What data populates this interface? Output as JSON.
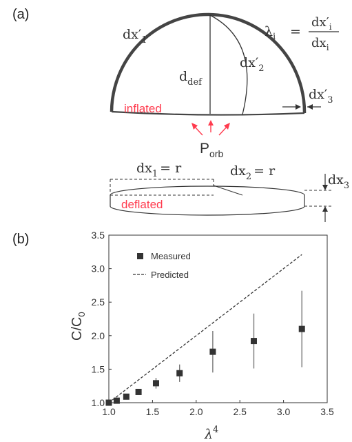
{
  "panel_a": {
    "label": "(a)",
    "dx1_prime": "dx′",
    "dx1_prime_sub": "1",
    "lambda_lhs": "λ",
    "lambda_lhs_sub": "i",
    "equals": "=",
    "frac_num": "dx′",
    "frac_num_sub": "i",
    "frac_den": "dx",
    "frac_den_sub": "i",
    "ddef": "d",
    "ddef_sub": "def",
    "dx2_prime": "dx′",
    "dx2_prime_sub": "2",
    "dx3_prime": "dx′",
    "dx3_prime_sub": "3",
    "inflated": "inflated",
    "porb": "P",
    "porb_sub": "orb",
    "dx1_eq": "dx",
    "dx1_eq_sub": "1",
    "dx1_eq_rhs": "= r",
    "dx2_eq": "dx",
    "dx2_eq_sub": "2",
    "dx2_eq_rhs": "= r",
    "dx3": "dx",
    "dx3_sub": "3",
    "deflated": "deflated",
    "label_color": "#ff3b4e"
  },
  "panel_b": {
    "label": "(b)"
  },
  "chart_data": {
    "type": "scatter",
    "xlabel": "λ",
    "xlabel_sup": "4",
    "ylabel": "C/C",
    "ylabel_sub": "0",
    "xlim": [
      1.0,
      3.5
    ],
    "ylim": [
      1.0,
      3.5
    ],
    "xticks": [
      "1.0",
      "1.5",
      "2.0",
      "2.5",
      "3.0",
      "3.5"
    ],
    "yticks": [
      "1.0",
      "1.5",
      "2.0",
      "2.5",
      "3.0",
      "3.5"
    ],
    "grid": false,
    "legend_position": "top-left",
    "series": [
      {
        "name": "Measured",
        "marker": "square",
        "color": "#333333",
        "points": [
          {
            "x": 1.0,
            "y": 1.0,
            "err": 0.0
          },
          {
            "x": 1.09,
            "y": 1.03,
            "err": 0.02
          },
          {
            "x": 1.2,
            "y": 1.09,
            "err": 0.03
          },
          {
            "x": 1.34,
            "y": 1.16,
            "err": 0.04
          },
          {
            "x": 1.54,
            "y": 1.29,
            "err": 0.08
          },
          {
            "x": 1.81,
            "y": 1.44,
            "err": 0.13
          },
          {
            "x": 2.19,
            "y": 1.76,
            "err": 0.31
          },
          {
            "x": 2.66,
            "y": 1.92,
            "err": 0.41
          },
          {
            "x": 3.21,
            "y": 2.1,
            "err": 0.57
          }
        ]
      },
      {
        "name": "Predicted",
        "style": "dashed",
        "color": "#333333",
        "points": [
          {
            "x": 1.0,
            "y": 1.0
          },
          {
            "x": 3.21,
            "y": 3.21
          }
        ]
      }
    ]
  }
}
